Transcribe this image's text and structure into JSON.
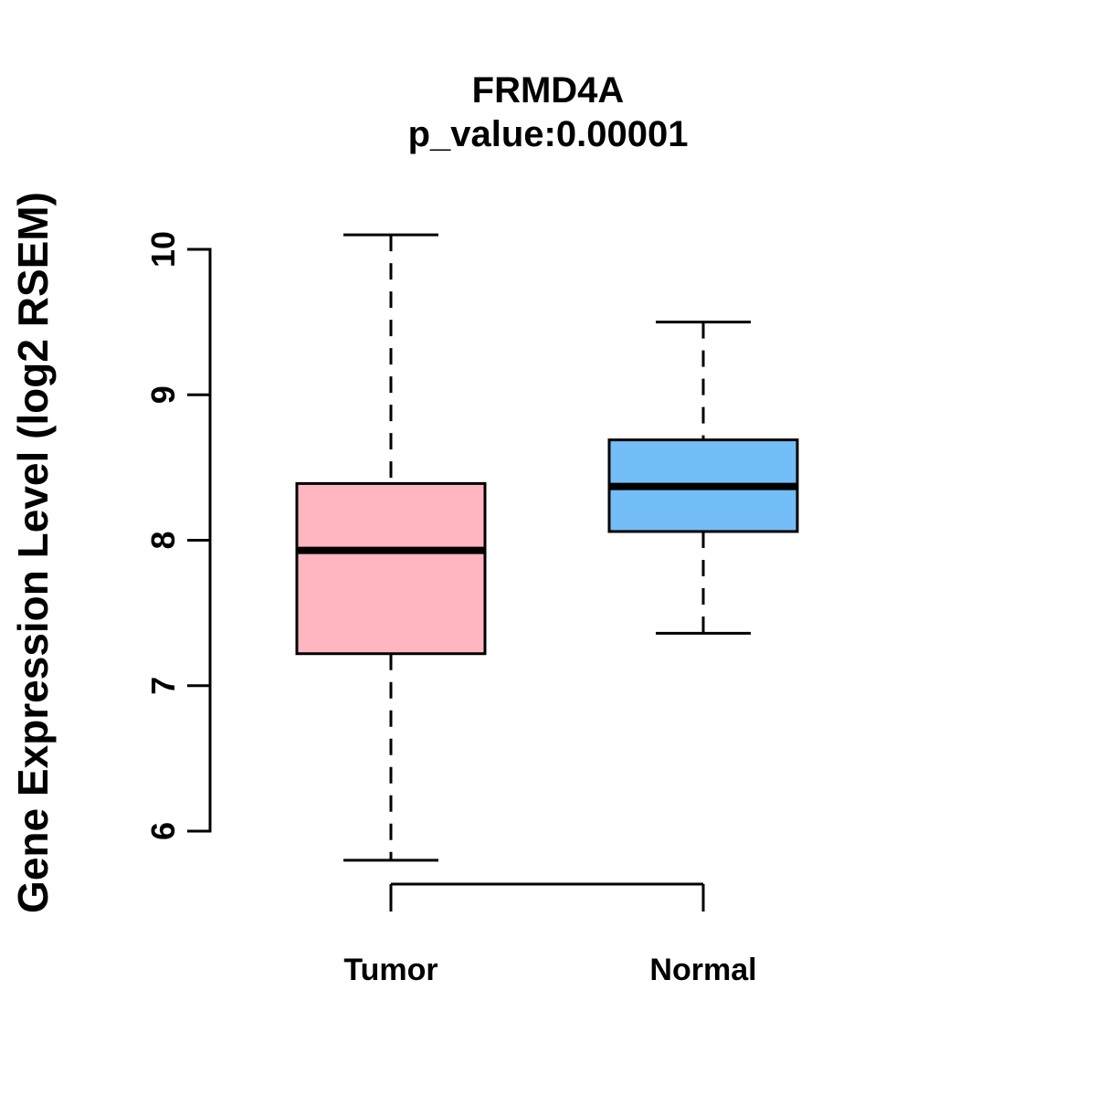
{
  "chart_data": {
    "type": "boxplot",
    "title": "FRMD4A",
    "subtitle": "p_value:0.00001",
    "p_value": "0.00001",
    "ylabel": "Gene Expression Level (log2 RSEM)",
    "yticks": [
      6,
      7,
      8,
      9,
      10
    ],
    "ylim": [
      6,
      10
    ],
    "grid": false,
    "legend": "none",
    "groups": [
      {
        "label": "Tumor",
        "fill_color": "#FFB6C1",
        "whisker_low": 5.8,
        "q1": 7.22,
        "median": 7.93,
        "q3": 8.39,
        "whisker_high": 10.1
      },
      {
        "label": "Normal",
        "fill_color": "#74BEF8",
        "whisker_low": 7.36,
        "q1": 8.06,
        "median": 8.37,
        "q3": 8.69,
        "whisker_high": 9.5
      }
    ]
  },
  "colors": {
    "stroke": "#000000",
    "background": "#FFFFFF"
  }
}
